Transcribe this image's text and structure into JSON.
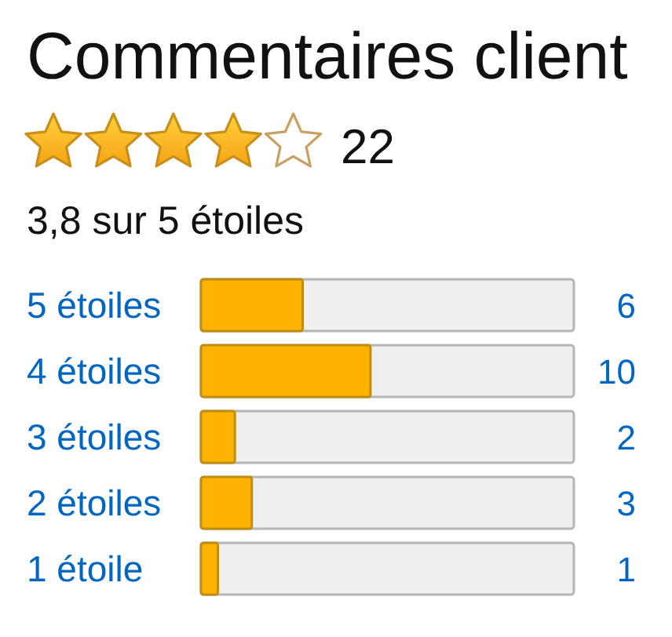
{
  "chart_data": {
    "type": "bar",
    "orientation": "horizontal",
    "title": "Commentaires client",
    "categories": [
      "5 étoiles",
      "4 étoiles",
      "3 étoiles",
      "2 étoiles",
      "1 étoile"
    ],
    "values": [
      6,
      10,
      2,
      3,
      1
    ],
    "color": "#ffb300",
    "xlim": [
      0,
      22
    ],
    "data_labels": true,
    "tick_labels": "y",
    "annotations": [
      "22",
      "3,8 sur 5 étoiles"
    ]
  }
}
